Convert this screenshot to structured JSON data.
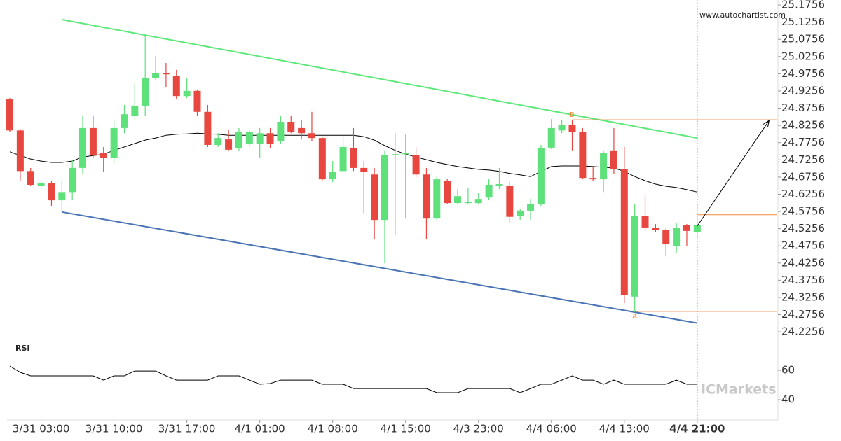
{
  "chart_data": [
    {
      "type": "candlestick",
      "watermark": "www.autochartist.com",
      "logo": "ICMarkets",
      "xlim": [
        -0.27,
        73.75
      ],
      "ylim": [
        24.2,
        25.19
      ],
      "current_x": 66,
      "up_color": "#5ee07a",
      "down_color": "#e8473f",
      "yticks": [
        24.2256,
        24.2756,
        24.3256,
        24.3756,
        24.4256,
        24.4756,
        24.5256,
        24.5756,
        24.6256,
        24.6756,
        24.7256,
        24.7756,
        24.8256,
        24.8756,
        24.9256,
        24.9756,
        25.0256,
        25.0756,
        25.1256,
        25.1756
      ],
      "xticks": [
        {
          "value": 3,
          "label": "3/31 03:00"
        },
        {
          "value": 10,
          "label": "3/31 10:00"
        },
        {
          "value": 17,
          "label": "3/31 17:00"
        },
        {
          "value": 24,
          "label": "4/1 01:00"
        },
        {
          "value": 31,
          "label": "4/1 08:00"
        },
        {
          "value": 38,
          "label": "4/1 15:00"
        },
        {
          "value": 45,
          "label": "4/3 23:00"
        },
        {
          "value": 52,
          "label": "4/4 06:00"
        },
        {
          "value": 59,
          "label": "4/4 13:00"
        },
        {
          "value": 66,
          "label": "4/4 21:00"
        }
      ],
      "open": [
        24.901,
        24.811,
        24.693,
        24.651,
        24.657,
        24.608,
        24.632,
        24.702,
        24.818,
        24.746,
        24.732,
        24.818,
        24.854,
        24.883,
        24.964,
        24.978,
        24.97,
        24.911,
        24.926,
        24.865,
        24.769,
        24.785,
        24.759,
        24.773,
        24.773,
        24.803,
        24.781,
        24.836,
        24.818,
        24.803,
        24.789,
        24.669,
        24.693,
        24.759,
        24.702,
        24.683,
        24.551,
        24.74,
        24.742,
        24.74,
        24.683,
        24.555,
        24.665,
        24.6,
        24.6,
        24.6,
        24.616,
        24.651,
        24.651,
        24.563,
        24.578,
        24.598,
        24.761,
        24.811,
        24.826,
        24.807,
        24.673,
        24.669,
        24.753,
        24.698,
        24.328,
        24.563,
        24.529,
        24.521,
        24.476,
        24.535,
        24.515
      ],
      "high": [
        24.905,
        24.815,
        24.702,
        24.665,
        24.665,
        24.665,
        24.726,
        24.854,
        24.854,
        24.763,
        24.844,
        24.885,
        24.946,
        25.088,
        25.027,
        25.007,
        24.987,
        24.962,
        24.93,
        24.885,
        24.803,
        24.814,
        24.818,
        24.814,
        24.818,
        24.818,
        24.854,
        24.854,
        24.84,
        24.865,
        24.793,
        24.722,
        24.793,
        24.818,
        24.722,
        24.702,
        24.753,
        24.803,
        24.799,
        24.763,
        24.702,
        24.677,
        24.671,
        24.641,
        24.645,
        24.629,
        24.669,
        24.702,
        24.665,
        24.584,
        24.612,
        24.769,
        24.844,
        24.84,
        24.84,
        24.818,
        24.706,
        24.753,
        24.818,
        24.763,
        24.598,
        24.625,
        24.539,
        24.529,
        24.543,
        24.539,
        24.549
      ],
      "low": [
        24.807,
        24.665,
        24.649,
        24.641,
        24.592,
        24.573,
        24.608,
        24.685,
        24.732,
        24.691,
        24.716,
        24.803,
        24.844,
        24.854,
        24.956,
        24.936,
        24.901,
        24.905,
        24.854,
        24.763,
        24.763,
        24.751,
        24.751,
        24.763,
        24.732,
        24.759,
        24.773,
        24.803,
        24.785,
        24.781,
        24.665,
        24.661,
        24.69,
        24.693,
        24.57,
        24.494,
        24.425,
        24.507,
        24.555,
        24.675,
        24.494,
        24.551,
        24.596,
        24.596,
        24.596,
        24.596,
        24.608,
        24.641,
        24.543,
        24.551,
        24.551,
        24.592,
        24.757,
        24.803,
        24.753,
        24.669,
        24.665,
        24.632,
        24.685,
        24.309,
        24.283,
        24.519,
        24.515,
        24.445,
        24.456,
        24.476,
        24.498
      ],
      "close": [
        24.811,
        24.693,
        24.653,
        24.657,
        24.608,
        24.632,
        24.702,
        24.818,
        24.738,
        24.732,
        24.818,
        24.858,
        24.883,
        24.964,
        24.978,
        24.974,
        24.911,
        24.926,
        24.865,
        24.769,
        24.789,
        24.755,
        24.807,
        24.807,
        24.803,
        24.773,
        24.836,
        24.807,
        24.803,
        24.789,
        24.669,
        24.69,
        24.763,
        24.702,
        24.69,
        24.551,
        24.74,
        24.742,
        24.745,
        24.683,
        24.555,
        24.669,
        24.6,
        24.62,
        24.604,
        24.612,
        24.653,
        24.655,
        24.56,
        24.578,
        24.598,
        24.761,
        24.818,
        24.826,
        24.807,
        24.673,
        24.669,
        24.745,
        24.698,
        24.332,
        24.563,
        24.529,
        24.521,
        24.48,
        24.529,
        24.519,
        24.537
      ],
      "series": [
        {
          "color": "#000000",
          "values": [
            24.749,
            24.738,
            24.728,
            24.722,
            24.718,
            24.718,
            24.722,
            24.734,
            24.738,
            24.742,
            24.753,
            24.763,
            24.773,
            24.783,
            24.789,
            24.797,
            24.8,
            24.801,
            24.803,
            24.801,
            24.8,
            24.797,
            24.797,
            24.797,
            24.797,
            24.797,
            24.797,
            24.797,
            24.797,
            24.797,
            24.797,
            24.797,
            24.797,
            24.797,
            24.793,
            24.783,
            24.767,
            24.753,
            24.742,
            24.734,
            24.726,
            24.718,
            24.712,
            24.706,
            24.702,
            24.698,
            24.696,
            24.692,
            24.686,
            24.682,
            24.677,
            24.692,
            24.706,
            24.708,
            24.708,
            24.708,
            24.706,
            24.704,
            24.702,
            24.692,
            24.677,
            24.665,
            24.655,
            24.649,
            24.645,
            24.639,
            24.632
          ]
        }
      ],
      "channels": [
        {
          "color": "#5ee87a",
          "x": [
            5,
            66
          ],
          "values": [
            25.133,
            24.789
          ]
        },
        {
          "color": "#4a74b4",
          "x": [
            5,
            66
          ],
          "values": [
            24.574,
            24.251
          ]
        }
      ],
      "levels": [
        {
          "label": "B",
          "x": 54,
          "value": 24.842
        },
        {
          "label": "A",
          "x": 60,
          "value": 24.285
        },
        {
          "x": 66,
          "value": 24.566
        }
      ],
      "level_color": "#f0883a",
      "arrow": {
        "x": [
          66,
          72.9
        ],
        "values": [
          24.533,
          24.84
        ]
      }
    },
    {
      "type": "line",
      "title": "RSI",
      "xlim": [
        -0.27,
        73.75
      ],
      "ylim": [
        26.2,
        81
      ],
      "yticks": [
        40,
        60
      ],
      "color": "#000000",
      "values": [
        62.9,
        58.6,
        56.2,
        56.2,
        56.2,
        56.2,
        56.2,
        56.2,
        56.2,
        53.3,
        56.2,
        56.2,
        59.5,
        59.5,
        59.5,
        56.2,
        53.3,
        53.3,
        53.3,
        53.3,
        56.2,
        56.2,
        56.2,
        53.3,
        50.5,
        51.0,
        53.3,
        53.3,
        53.3,
        53.3,
        50.5,
        50.5,
        50.5,
        47.6,
        47.6,
        47.6,
        47.6,
        47.6,
        47.6,
        47.6,
        47.6,
        44.8,
        44.8,
        44.8,
        47.6,
        47.6,
        47.6,
        47.6,
        47.6,
        44.8,
        47.6,
        50.5,
        50.5,
        53.3,
        56.2,
        53.3,
        53.3,
        50.5,
        53.3,
        50.5,
        50.5,
        50.5,
        50.5,
        50.5,
        53.3,
        50.5,
        50.5
      ]
    }
  ]
}
